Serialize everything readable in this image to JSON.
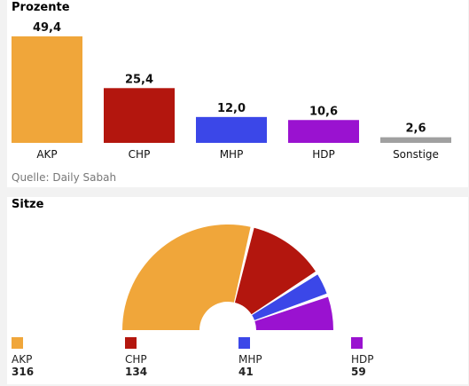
{
  "chart_data": [
    {
      "type": "bar",
      "title": "Prozente",
      "categories": [
        "AKP",
        "CHP",
        "MHP",
        "HDP",
        "Sonstige"
      ],
      "values": [
        49.4,
        25.4,
        12.0,
        10.6,
        2.6
      ],
      "value_labels": [
        "49,4",
        "25,4",
        "12,0",
        "10,6",
        "2,6"
      ],
      "colors": [
        "#f0a63a",
        "#b3160e",
        "#3b47e8",
        "#9a12d0",
        "#a0a0a0"
      ],
      "source": "Quelle: Daily Sabah",
      "grid": false
    },
    {
      "type": "pie",
      "subtype": "parliament semicircle",
      "title": "Sitze",
      "categories": [
        "AKP",
        "CHP",
        "MHP",
        "HDP"
      ],
      "values": [
        316,
        134,
        41,
        59
      ],
      "value_labels": [
        "316",
        "134",
        "41",
        "59"
      ],
      "colors": [
        "#f0a63a",
        "#b3160e",
        "#3b47e8",
        "#9a12d0"
      ]
    }
  ]
}
